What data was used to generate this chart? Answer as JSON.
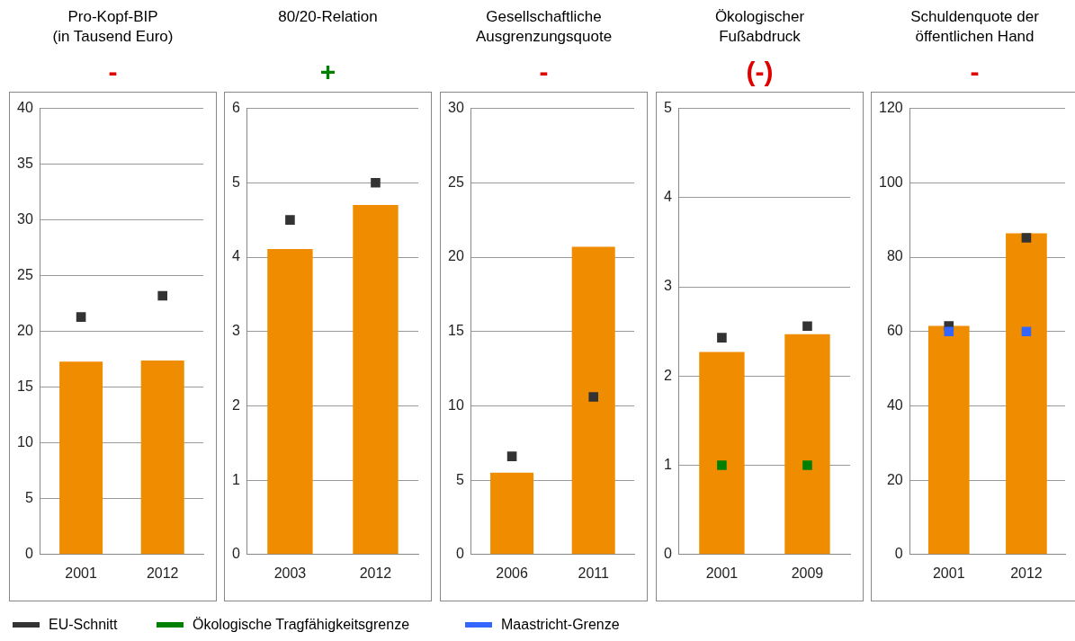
{
  "chart_data": [
    {
      "type": "bar",
      "title": "Pro-Kopf-BIP\n(in Tausend Euro)",
      "subtitle": "-",
      "categories": [
        "2001",
        "2012"
      ],
      "series": [
        {
          "type": "bar",
          "color": "#f08c00",
          "values": [
            17.3,
            17.4
          ]
        },
        {
          "type": "scatter",
          "name": "EU-Schnitt",
          "color": "#333333",
          "values": [
            21.3,
            23.2
          ]
        }
      ],
      "ylim": [
        0,
        40
      ],
      "yticks": [
        0,
        5,
        10,
        15,
        20,
        25,
        30,
        35,
        40
      ],
      "grid": "y",
      "legend": "bottom",
      "marker": "square"
    },
    {
      "type": "bar",
      "title": "80/20-Relation",
      "subtitle": "+",
      "categories": [
        "2003",
        "2012"
      ],
      "series": [
        {
          "type": "bar",
          "color": "#f08c00",
          "values": [
            4.11,
            4.7
          ]
        },
        {
          "type": "scatter",
          "color": "#333333",
          "values": [
            4.5,
            5.0
          ]
        }
      ],
      "ylim": [
        0,
        6
      ],
      "yticks": [
        0,
        1,
        2,
        3,
        4,
        5,
        6
      ],
      "grid": "y",
      "marker": "square"
    },
    {
      "type": "bar",
      "title": "Gesellschaftliche\nAusgrenzungsquote",
      "subtitle": "-",
      "categories": [
        "2006",
        "2011"
      ],
      "series": [
        {
          "type": "bar",
          "color": "#f08c00",
          "values": [
            5.5,
            20.7
          ]
        },
        {
          "type": "scatter",
          "color": "#333333",
          "values": [
            6.6,
            10.6
          ]
        }
      ],
      "ylim": [
        0,
        30
      ],
      "yticks": [
        0,
        5,
        10,
        15,
        20,
        25,
        30
      ],
      "grid": "y",
      "marker": "square"
    },
    {
      "type": "bar",
      "title": "Ökologischer\nFußabdruck",
      "subtitle": "(-)",
      "categories": [
        "2001",
        "2009"
      ],
      "series": [
        {
          "type": "bar",
          "color": "#f08c00",
          "values": [
            2.27,
            2.47
          ]
        },
        {
          "type": "scatter",
          "color": "#333333",
          "values": [
            2.43,
            2.56
          ]
        },
        {
          "type": "scatter",
          "name": "Ökologische Tragfähigkeitsgrenze",
          "color": "#008000",
          "values": [
            1.0,
            1.0
          ]
        }
      ],
      "ylim": [
        0,
        5
      ],
      "yticks": [
        0,
        1,
        2,
        3,
        4,
        5
      ],
      "grid": "y",
      "legend": "bottom",
      "marker": "square"
    },
    {
      "type": "bar",
      "title": "Schuldenquote der\nöffentlichen Hand",
      "subtitle": "-",
      "categories": [
        "2001",
        "2012"
      ],
      "series": [
        {
          "type": "bar",
          "color": "#f08c00",
          "values": [
            61.5,
            86.4
          ]
        },
        {
          "type": "scatter",
          "color": "#333333",
          "values": [
            61.5,
            85.2
          ]
        },
        {
          "type": "scatter",
          "name": "Maastricht-Grenze",
          "color": "#3366ff",
          "values": [
            60,
            60
          ]
        }
      ],
      "ylim": [
        0,
        120
      ],
      "yticks": [
        0,
        20,
        40,
        60,
        80,
        100,
        120
      ],
      "grid": "y",
      "legend": "bottom",
      "marker": "square"
    }
  ]
}
